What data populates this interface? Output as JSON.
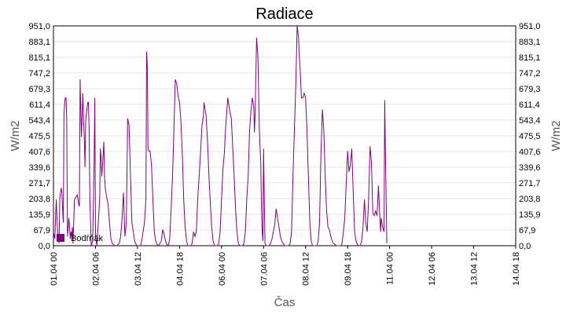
{
  "chart_data": {
    "type": "line",
    "title": "Radiace",
    "xlabel": "Čas",
    "ylabel": "W/m2",
    "ylabel_right": "W/m2",
    "ylim": [
      0,
      951
    ],
    "yticks": [
      "0,0",
      "67,9",
      "135,9",
      "203,8",
      "271,7",
      "339,6",
      "407,6",
      "475,5",
      "543,4",
      "611,4",
      "679,3",
      "747,2",
      "815,1",
      "883,1",
      "951,0"
    ],
    "xticks": [
      "01.04 00",
      "02.04 06",
      "03.04 12",
      "04.04 18",
      "06.04 00",
      "07.04 06",
      "08.04 12",
      "09.04 18",
      "11.04 00",
      "12.04 06",
      "13.04 12",
      "14.04 18"
    ],
    "x_range_hours": [
      0,
      330
    ],
    "grid": true,
    "legend_position": "bottom-left",
    "series": [
      {
        "name": "Bodřňák",
        "color": "#800080",
        "points": [
          [
            0,
            60
          ],
          [
            1,
            30
          ],
          [
            1.5,
            130
          ],
          [
            2,
            200
          ],
          [
            2.5,
            120
          ],
          [
            3,
            60
          ],
          [
            3.5,
            40
          ],
          [
            4,
            10
          ],
          [
            4.5,
            200
          ],
          [
            5,
            230
          ],
          [
            5.5,
            250
          ],
          [
            6,
            230
          ],
          [
            6.5,
            160
          ],
          [
            7,
            100
          ],
          [
            7.5,
            570
          ],
          [
            8,
            620
          ],
          [
            8.5,
            640
          ],
          [
            9,
            640
          ],
          [
            9.5,
            540
          ],
          [
            10,
            40
          ],
          [
            10.5,
            80
          ],
          [
            11,
            120
          ],
          [
            11.5,
            80
          ],
          [
            12,
            30
          ],
          [
            12.5,
            60
          ],
          [
            13,
            40
          ],
          [
            13.5,
            80
          ],
          [
            14,
            10
          ],
          [
            15,
            200
          ],
          [
            16,
            210
          ],
          [
            17,
            220
          ],
          [
            18,
            180
          ],
          [
            18.5,
            170
          ],
          [
            19,
            720
          ],
          [
            19.5,
            600
          ],
          [
            20,
            470
          ],
          [
            21,
            660
          ],
          [
            21.5,
            540
          ],
          [
            22,
            470
          ],
          [
            22.5,
            340
          ],
          [
            23,
            540
          ],
          [
            24,
            600
          ],
          [
            24.5,
            620
          ],
          [
            25,
            620
          ],
          [
            25.5,
            500
          ],
          [
            26,
            200
          ],
          [
            27,
            0
          ],
          [
            28,
            20
          ],
          [
            29,
            360
          ],
          [
            29.5,
            640
          ],
          [
            30,
            40
          ],
          [
            31,
            0
          ],
          [
            32,
            100
          ],
          [
            33,
            200
          ],
          [
            33.5,
            420
          ],
          [
            34,
            380
          ],
          [
            34.5,
            300
          ],
          [
            35,
            350
          ],
          [
            35.5,
            400
          ],
          [
            36,
            450
          ],
          [
            36.5,
            300
          ],
          [
            37,
            250
          ],
          [
            38,
            210
          ],
          [
            39,
            180
          ],
          [
            40,
            100
          ],
          [
            41,
            30
          ],
          [
            42,
            10
          ],
          [
            44,
            0
          ],
          [
            45,
            0
          ],
          [
            46,
            5
          ],
          [
            47,
            10
          ],
          [
            48,
            40
          ],
          [
            49,
            120
          ],
          [
            50,
            230
          ],
          [
            51,
            40
          ],
          [
            52,
            100
          ],
          [
            53,
            550
          ],
          [
            54,
            520
          ],
          [
            55,
            300
          ],
          [
            56,
            100
          ],
          [
            57,
            60
          ],
          [
            58,
            20
          ],
          [
            59,
            5
          ],
          [
            60,
            0
          ],
          [
            62,
            0
          ],
          [
            63,
            20
          ],
          [
            64,
            60
          ],
          [
            65,
            100
          ],
          [
            66,
            200
          ],
          [
            66.5,
            840
          ],
          [
            67,
            780
          ],
          [
            67.5,
            420
          ],
          [
            68,
            410
          ],
          [
            69,
            410
          ],
          [
            70,
            350
          ],
          [
            71,
            200
          ],
          [
            72,
            60
          ],
          [
            73,
            20
          ],
          [
            74,
            5
          ],
          [
            75,
            0
          ],
          [
            77,
            20
          ],
          [
            78,
            70
          ],
          [
            79,
            50
          ],
          [
            80,
            20
          ],
          [
            81,
            5
          ],
          [
            82,
            0
          ],
          [
            83,
            30
          ],
          [
            84,
            160
          ],
          [
            85,
            300
          ],
          [
            86,
            500
          ],
          [
            87,
            720
          ],
          [
            88,
            700
          ],
          [
            89,
            650
          ],
          [
            90,
            620
          ],
          [
            91,
            540
          ],
          [
            92,
            400
          ],
          [
            93,
            200
          ],
          [
            94,
            80
          ],
          [
            95,
            20
          ],
          [
            96,
            0
          ],
          [
            98,
            0
          ],
          [
            99,
            10
          ],
          [
            100,
            60
          ],
          [
            101,
            40
          ],
          [
            102,
            60
          ],
          [
            103,
            200
          ],
          [
            104,
            300
          ],
          [
            105,
            400
          ],
          [
            106,
            520
          ],
          [
            107,
            560
          ],
          [
            107.5,
            620
          ],
          [
            108,
            600
          ],
          [
            109,
            560
          ],
          [
            110,
            450
          ],
          [
            111,
            300
          ],
          [
            112,
            180
          ],
          [
            113,
            80
          ],
          [
            114,
            20
          ],
          [
            115,
            0
          ],
          [
            116,
            0
          ],
          [
            117,
            0
          ],
          [
            118,
            10
          ],
          [
            119,
            60
          ],
          [
            120,
            200
          ],
          [
            121,
            330
          ],
          [
            122,
            400
          ],
          [
            123,
            520
          ],
          [
            124,
            600
          ],
          [
            124.5,
            640
          ],
          [
            125,
            620
          ],
          [
            126,
            580
          ],
          [
            127,
            550
          ],
          [
            128,
            420
          ],
          [
            129,
            300
          ],
          [
            130,
            160
          ],
          [
            131,
            60
          ],
          [
            132,
            10
          ],
          [
            133,
            0
          ],
          [
            135,
            0
          ],
          [
            136,
            10
          ],
          [
            137,
            60
          ],
          [
            138,
            200
          ],
          [
            139,
            300
          ],
          [
            140,
            500
          ],
          [
            141,
            580
          ],
          [
            142,
            640
          ],
          [
            143,
            600
          ],
          [
            143.5,
            490
          ],
          [
            144,
            580
          ],
          [
            145,
            900
          ],
          [
            146,
            820
          ],
          [
            147,
            500
          ],
          [
            148,
            360
          ],
          [
            148.5,
            170
          ],
          [
            149,
            60
          ],
          [
            149.5,
            20
          ],
          [
            150,
            420
          ],
          [
            150.5,
            200
          ],
          [
            151,
            10
          ],
          [
            152,
            0
          ],
          [
            154,
            0
          ],
          [
            155,
            10
          ],
          [
            156,
            30
          ],
          [
            157,
            60
          ],
          [
            158,
            90
          ],
          [
            159,
            160
          ],
          [
            160,
            120
          ],
          [
            161,
            80
          ],
          [
            162,
            40
          ],
          [
            163,
            20
          ],
          [
            164,
            10
          ],
          [
            165,
            0
          ],
          [
            168,
            0
          ],
          [
            169,
            10
          ],
          [
            170,
            60
          ],
          [
            171,
            300
          ],
          [
            172,
            500
          ],
          [
            173,
            700
          ],
          [
            174,
            951
          ],
          [
            175,
            900
          ],
          [
            175.5,
            820
          ],
          [
            176,
            780
          ],
          [
            177,
            640
          ],
          [
            178,
            640
          ],
          [
            179,
            660
          ],
          [
            180,
            640
          ],
          [
            181,
            500
          ],
          [
            182,
            300
          ],
          [
            183,
            100
          ],
          [
            184,
            20
          ],
          [
            185,
            0
          ],
          [
            188,
            0
          ],
          [
            189,
            20
          ],
          [
            190,
            100
          ],
          [
            191,
            400
          ],
          [
            192,
            590
          ],
          [
            193,
            500
          ],
          [
            194,
            300
          ],
          [
            195,
            150
          ],
          [
            196,
            80
          ],
          [
            197,
            70
          ],
          [
            198,
            40
          ],
          [
            199,
            20
          ],
          [
            200,
            10
          ],
          [
            201,
            5
          ],
          [
            202,
            0
          ],
          [
            205,
            0
          ],
          [
            206,
            10
          ],
          [
            207,
            60
          ],
          [
            208,
            120
          ],
          [
            209,
            270
          ],
          [
            210,
            410
          ],
          [
            211,
            320
          ],
          [
            212,
            350
          ],
          [
            213,
            420
          ],
          [
            214,
            230
          ],
          [
            215,
            60
          ],
          [
            216,
            20
          ],
          [
            217,
            5
          ],
          [
            218,
            0
          ],
          [
            219,
            0
          ],
          [
            220,
            20
          ],
          [
            221,
            80
          ],
          [
            222,
            200
          ],
          [
            223,
            100
          ],
          [
            224,
            60
          ],
          [
            225,
            200
          ],
          [
            226,
            430
          ],
          [
            227,
            360
          ],
          [
            228,
            140
          ],
          [
            229,
            130
          ],
          [
            230,
            150
          ],
          [
            231,
            130
          ],
          [
            232,
            260
          ],
          [
            233,
            120
          ],
          [
            233.5,
            60
          ],
          [
            234,
            120
          ],
          [
            235,
            80
          ],
          [
            236,
            60
          ],
          [
            236.5,
            630
          ],
          [
            237,
            400
          ],
          [
            238,
            10
          ]
        ]
      }
    ]
  }
}
